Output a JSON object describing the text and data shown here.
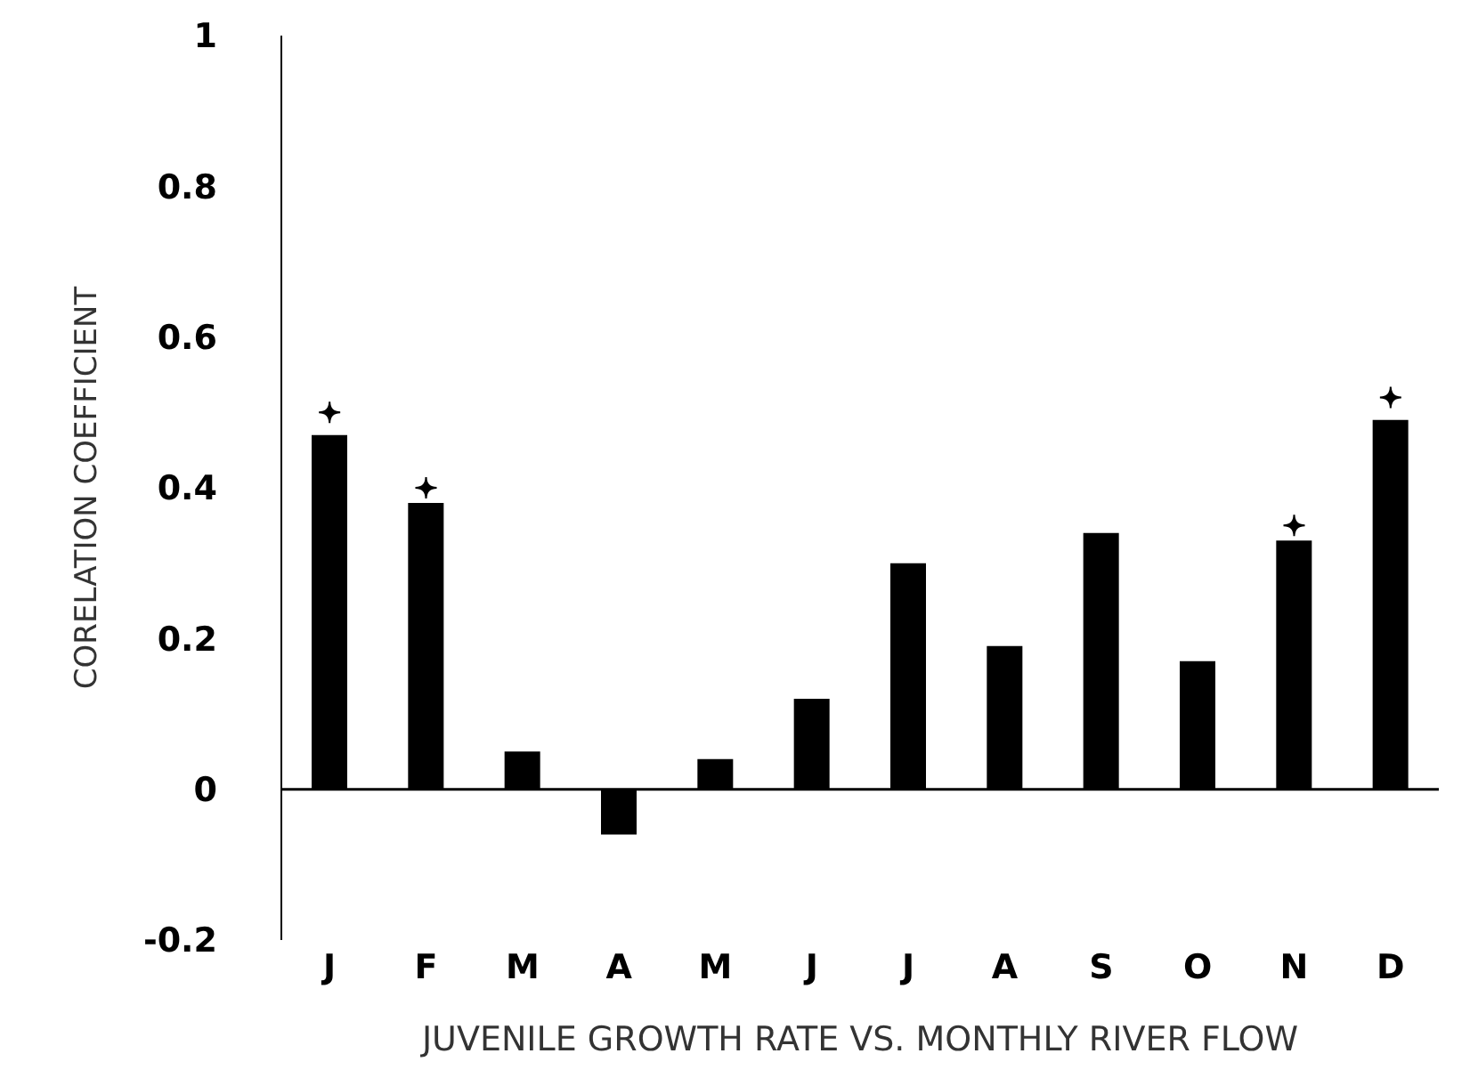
{
  "chart_data": {
    "type": "bar",
    "xlabel": "JUVENILE GROWTH RATE VS. MONTHLY RIVER FLOW",
    "ylabel": "CORELATION COEFFICIENT",
    "categories": [
      "J",
      "F",
      "M",
      "A",
      "M",
      "J",
      "J",
      "A",
      "S",
      "O",
      "N",
      "D"
    ],
    "series": [
      {
        "color": "#000000",
        "values": [
          0.47,
          0.38,
          0.05,
          -0.06,
          0.04,
          0.12,
          0.3,
          0.19,
          0.34,
          0.17,
          0.33,
          0.49
        ]
      },
      {
        "type": "scatter",
        "color": "#000000",
        "marker": "cross",
        "values": [
          0.5,
          0.4,
          null,
          null,
          null,
          null,
          null,
          null,
          null,
          null,
          0.35,
          0.52
        ]
      }
    ],
    "ylim": [
      -0.2,
      1
    ],
    "yticks": [
      -0.2,
      0,
      0.2,
      0.4,
      0.6,
      0.8,
      1
    ],
    "legend": false
  }
}
